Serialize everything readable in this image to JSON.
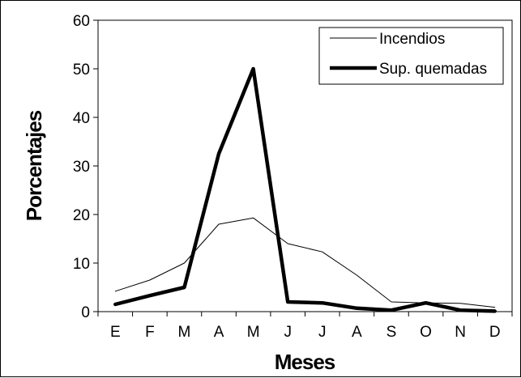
{
  "chart_data": {
    "type": "line",
    "categories": [
      "E",
      "F",
      "M",
      "A",
      "M",
      "J",
      "J",
      "A",
      "S",
      "O",
      "N",
      "D"
    ],
    "series": [
      {
        "name": "Incendios",
        "values": [
          4.2,
          6.5,
          10.0,
          18.0,
          19.3,
          14.0,
          12.3,
          7.5,
          2.0,
          1.8,
          1.7,
          0.9
        ],
        "color": "#000000",
        "stroke": "thin"
      },
      {
        "name": "Sup. quemadas",
        "values": [
          1.5,
          3.3,
          5.0,
          32.5,
          50.0,
          2.0,
          1.8,
          0.7,
          0.3,
          1.8,
          0.3,
          0.1
        ],
        "color": "#000000",
        "stroke": "thick"
      }
    ],
    "title": "",
    "xlabel": "Meses",
    "ylabel": "Porcentajes",
    "ylim": [
      0,
      60
    ],
    "yticks": [
      "0",
      "10",
      "20",
      "30",
      "40",
      "50",
      "60"
    ],
    "grid": false,
    "legend": "top-right"
  }
}
